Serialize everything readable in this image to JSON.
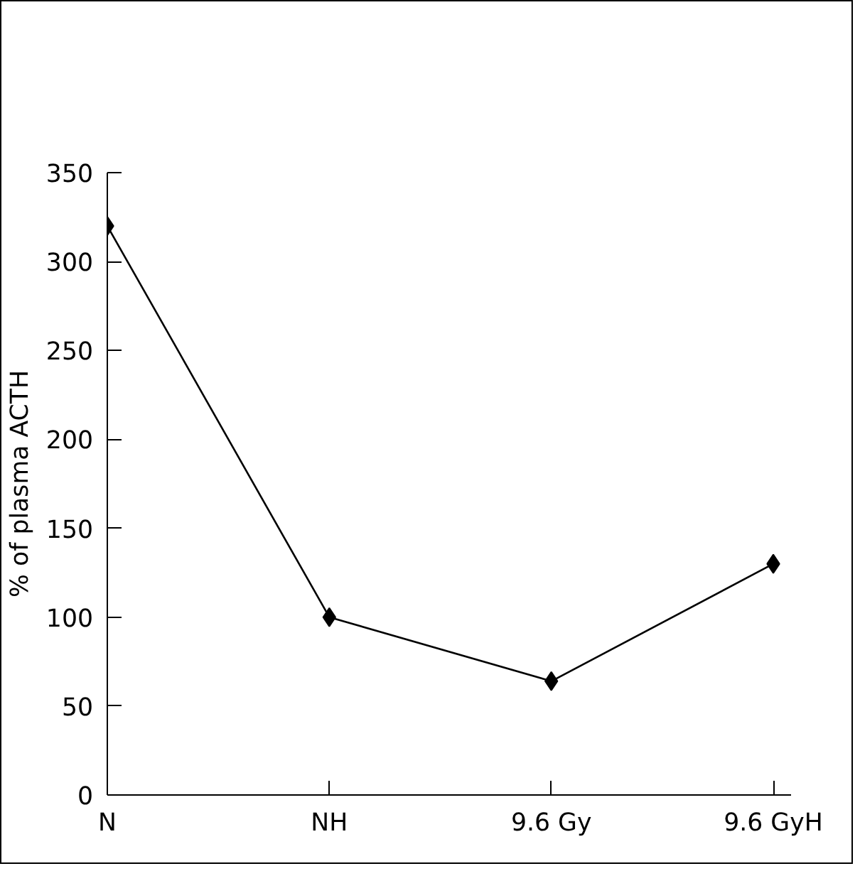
{
  "chart_data": {
    "type": "line",
    "ylabel": "% of plasma ACTH",
    "categories": [
      "N",
      "NH",
      "9.6 Gy",
      "9.6 GyH"
    ],
    "series": [
      {
        "color": "#000000",
        "values": [
          320,
          100,
          64,
          130
        ]
      }
    ],
    "ylim": [
      0,
      350
    ],
    "yticks": [
      0,
      50,
      100,
      150,
      200,
      250,
      300,
      350
    ],
    "grid": false,
    "marker": "diamond",
    "line_style": "solid"
  }
}
